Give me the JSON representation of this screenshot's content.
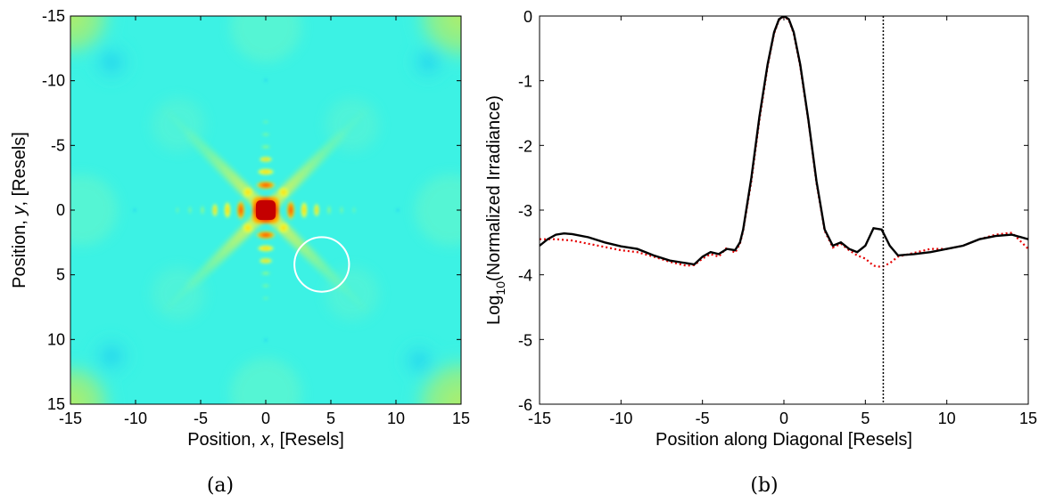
{
  "chart_data": [
    {
      "type": "heatmap",
      "caption": "(a)",
      "xlabel": {
        "prefix": "Position, ",
        "var": "x",
        "suffix": ", [Resels]"
      },
      "ylabel": {
        "prefix": "Position, ",
        "var": "y",
        "suffix": ", [Resels]"
      },
      "xlim": [
        -15,
        15
      ],
      "ylim": [
        -15,
        15
      ],
      "y_axis_direction": "downward-increasing",
      "x_ticks": [
        "-15",
        "-10",
        "-5",
        "0",
        "5",
        "10",
        "15"
      ],
      "y_ticks": [
        "-15",
        "-10",
        "-5",
        "0",
        "5",
        "10",
        "15"
      ],
      "colormap": "jet",
      "background_color": "#3cf2e4",
      "core_color": "#c40000",
      "circle": {
        "center": [
          4.3,
          4.2
        ],
        "radius": 2.1,
        "color": "#ffffff"
      }
    },
    {
      "type": "line",
      "caption": "(b)",
      "xlabel": "Position along Diagonal [Resels]",
      "ylabel": {
        "prefix": "Log",
        "sub": "10",
        "suffix": "(Normalized Irradiance)"
      },
      "xlim": [
        -15,
        15
      ],
      "ylim": [
        -6,
        0
      ],
      "x_ticks": [
        "-15",
        "-10",
        "-5",
        "0",
        "5",
        "10",
        "15"
      ],
      "y_ticks": [
        "0",
        "-1",
        "-2",
        "-3",
        "-4",
        "-5",
        "-6"
      ],
      "vline": {
        "x": 6.1,
        "style": "dotted",
        "color": "#000000"
      },
      "series": [
        {
          "style": "solid",
          "color": "#000000",
          "x": [
            -15,
            -14.5,
            -14,
            -13.5,
            -13,
            -12,
            -11,
            -10,
            -9,
            -8,
            -7,
            -6,
            -5.5,
            -5,
            -4.5,
            -4,
            -3.5,
            -3,
            -2.7,
            -2.5,
            -2,
            -1.5,
            -1,
            -0.6,
            -0.3,
            0,
            0.3,
            0.6,
            1,
            1.5,
            2,
            2.5,
            3,
            3.5,
            4,
            4.5,
            5,
            5.5,
            6,
            6.5,
            7,
            8,
            9,
            10,
            11,
            12,
            13,
            14,
            15
          ],
          "y": [
            -3.55,
            -3.45,
            -3.38,
            -3.36,
            -3.37,
            -3.42,
            -3.5,
            -3.56,
            -3.6,
            -3.7,
            -3.78,
            -3.82,
            -3.84,
            -3.72,
            -3.65,
            -3.68,
            -3.6,
            -3.62,
            -3.5,
            -3.3,
            -2.5,
            -1.55,
            -0.75,
            -0.25,
            -0.05,
            0,
            -0.05,
            -0.25,
            -0.75,
            -1.6,
            -2.55,
            -3.3,
            -3.55,
            -3.5,
            -3.6,
            -3.65,
            -3.55,
            -3.28,
            -3.3,
            -3.55,
            -3.7,
            -3.68,
            -3.65,
            -3.6,
            -3.55,
            -3.45,
            -3.4,
            -3.38,
            -3.45
          ]
        },
        {
          "style": "dotted",
          "color": "#e60000",
          "x": [
            -15,
            -14,
            -13,
            -12,
            -11,
            -10,
            -9,
            -8,
            -7,
            -6,
            -5.5,
            -5,
            -4.5,
            -4,
            -3.5,
            -3,
            -2.7,
            -2.5,
            -2,
            -1.5,
            -1,
            -0.6,
            -0.3,
            0,
            0.3,
            0.6,
            1,
            1.5,
            2,
            2.5,
            3,
            3.5,
            4,
            4.5,
            5,
            5.5,
            6,
            6.5,
            7,
            8,
            9,
            10,
            11,
            12,
            13,
            14,
            15
          ],
          "y": [
            -3.45,
            -3.45,
            -3.47,
            -3.52,
            -3.57,
            -3.62,
            -3.65,
            -3.72,
            -3.8,
            -3.86,
            -3.85,
            -3.75,
            -3.68,
            -3.72,
            -3.58,
            -3.66,
            -3.52,
            -3.32,
            -2.55,
            -1.6,
            -0.78,
            -0.27,
            -0.06,
            -0.01,
            -0.06,
            -0.27,
            -0.78,
            -1.62,
            -2.58,
            -3.32,
            -3.58,
            -3.52,
            -3.62,
            -3.7,
            -3.75,
            -3.86,
            -3.88,
            -3.82,
            -3.72,
            -3.66,
            -3.6,
            -3.6,
            -3.55,
            -3.45,
            -3.38,
            -3.35,
            -3.6
          ]
        }
      ]
    }
  ]
}
